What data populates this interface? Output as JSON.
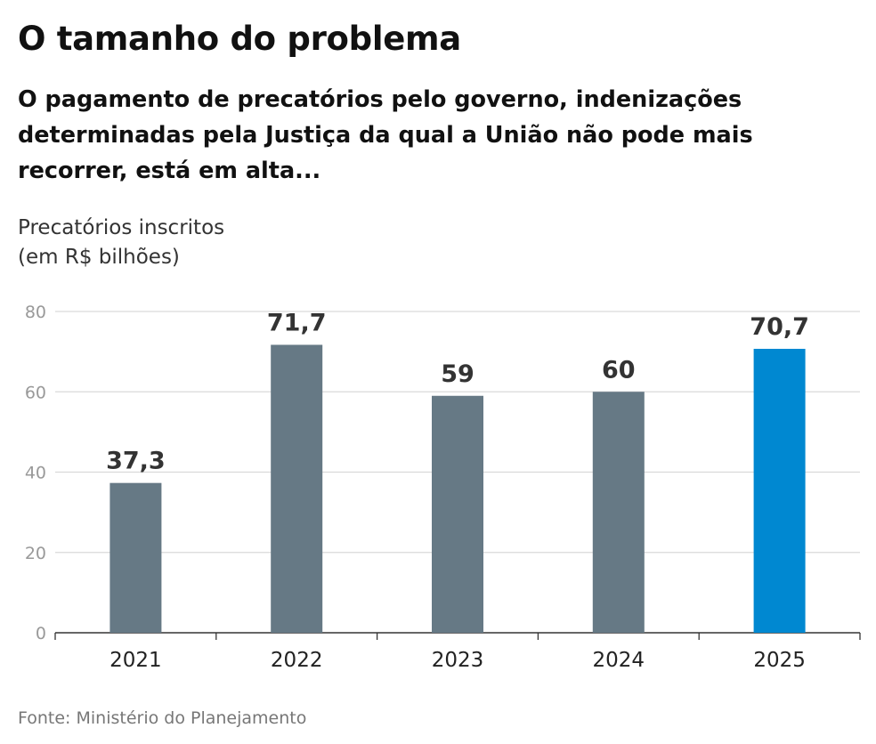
{
  "header": {
    "title": "O tamanho do problema",
    "subtitle": "O pagamento de precatórios pelo governo, indenizações determinadas pela Justiça da qual a União não pode mais recorrer, está em alta..."
  },
  "colors": {
    "bar_default": "#667985",
    "bar_highlight": "#0088d1",
    "grid": "#d9d9d9",
    "tick_text": "#999999",
    "value_text": "#333333"
  },
  "chart_data": {
    "type": "bar",
    "title": "O tamanho do problema",
    "ylabel_lines": [
      "Precatórios inscritos",
      "(em R$ bilhões)"
    ],
    "categories": [
      "2021",
      "2022",
      "2023",
      "2024",
      "2025"
    ],
    "values": [
      37.3,
      71.7,
      59,
      60,
      70.7
    ],
    "value_labels": [
      "37,3",
      "71,7",
      "59",
      "60",
      "70,7"
    ],
    "highlight": [
      "2025"
    ],
    "ylim": [
      0,
      80
    ],
    "yticks": [
      0,
      20,
      40,
      60,
      80
    ],
    "grid": true,
    "legend": "none"
  },
  "footer": {
    "source": "Fonte: Ministério do Planejamento"
  }
}
